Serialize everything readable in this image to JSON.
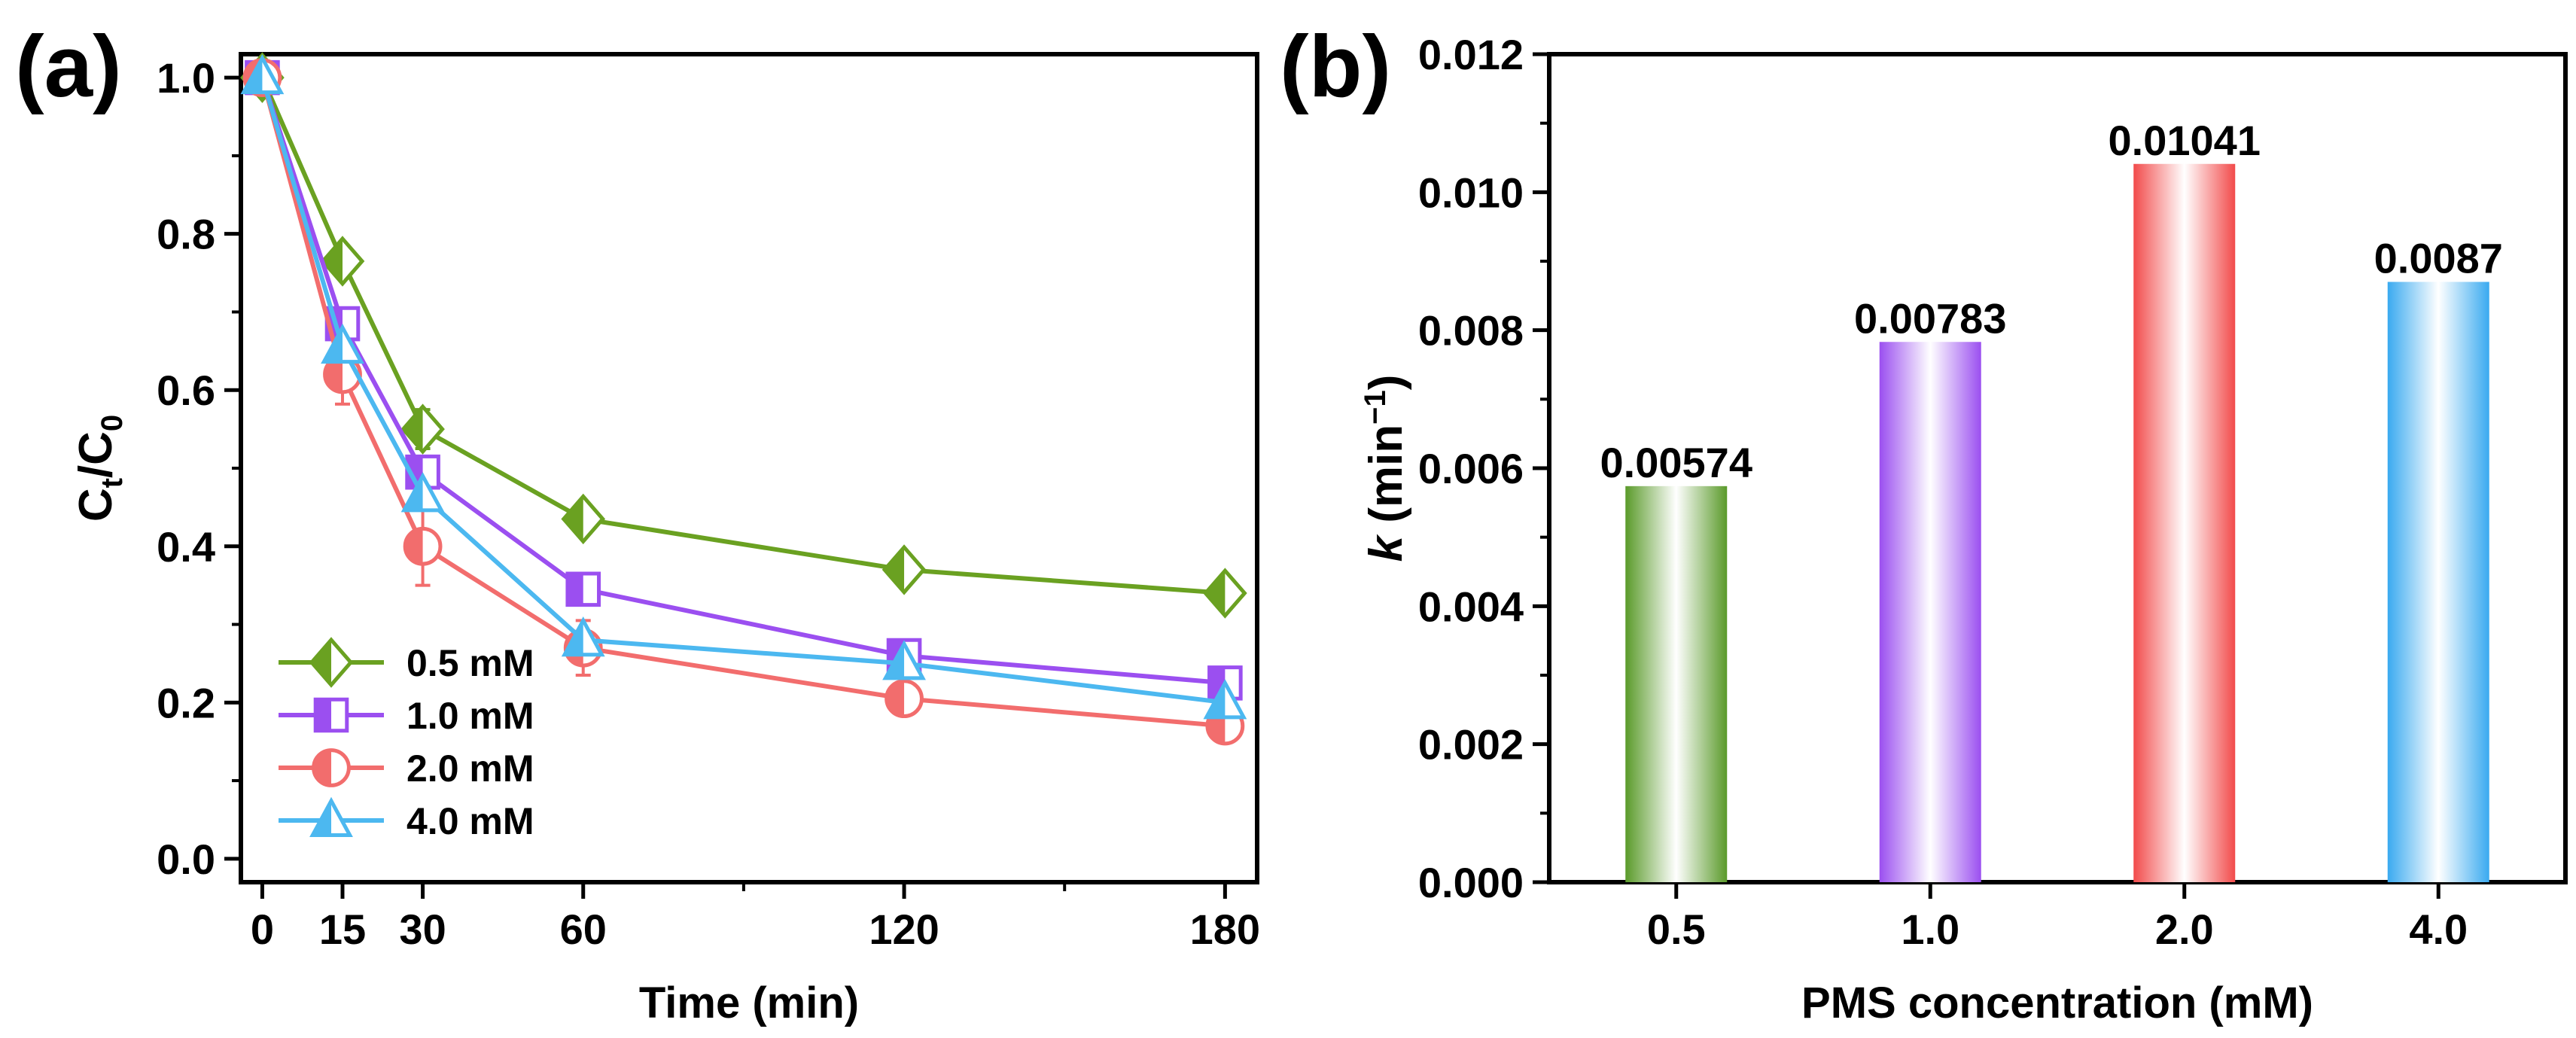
{
  "panel_a": {
    "label": "(a)"
  },
  "panel_b": {
    "label": "(b)"
  },
  "chart_data": [
    {
      "type": "line",
      "panel": "(a)",
      "xlabel": "Time (min)",
      "ylabel_main": "C",
      "ylabel_sub1": "t",
      "ylabel_sep": "/C",
      "ylabel_sub2": "0",
      "xlim": [
        -4,
        186
      ],
      "ylim": [
        -0.03,
        1.03
      ],
      "xticks": [
        0,
        15,
        30,
        60,
        120,
        180
      ],
      "xtick_labels": [
        "0",
        "15",
        "30",
        "60",
        "120",
        "180"
      ],
      "yticks": [
        0.0,
        0.2,
        0.4,
        0.6,
        0.8,
        1.0
      ],
      "ytick_labels": [
        "0.0",
        "0.2",
        "0.4",
        "0.6",
        "0.8",
        "1.0"
      ],
      "x": [
        0,
        15,
        30,
        60,
        120,
        180
      ],
      "legend_position": "bottom-left",
      "series": [
        {
          "name": "0.5 mM",
          "color": "#6aa121",
          "marker": "diamond",
          "values": [
            1.0,
            0.765,
            0.55,
            0.435,
            0.37,
            0.34
          ],
          "errors": [
            0,
            0.012,
            0.025,
            0.015,
            0.01,
            0.01
          ]
        },
        {
          "name": "1.0 mM",
          "color": "#9b4ff0",
          "marker": "square",
          "values": [
            1.0,
            0.685,
            0.495,
            0.345,
            0.26,
            0.225
          ],
          "errors": [
            0,
            0.01,
            0.015,
            0.012,
            0.01,
            0.01
          ]
        },
        {
          "name": "2.0 mM",
          "color": "#f26d6d",
          "marker": "circle",
          "values": [
            1.0,
            0.62,
            0.4,
            0.27,
            0.205,
            0.17
          ],
          "errors": [
            0,
            0.038,
            0.05,
            0.035,
            0.01,
            0.015
          ]
        },
        {
          "name": "4.0 mM",
          "color": "#4cb8f0",
          "marker": "triangle",
          "values": [
            1.0,
            0.655,
            0.465,
            0.28,
            0.25,
            0.2
          ],
          "errors": [
            0,
            0.01,
            0.012,
            0.01,
            0.01,
            0.01
          ]
        }
      ]
    },
    {
      "type": "bar",
      "panel": "(b)",
      "xlabel": "PMS concentration (mM)",
      "ylabel_k": "k",
      "ylabel_unit": " (min",
      "ylabel_exp": "−1",
      "ylabel_close": ")",
      "categories": [
        "0.5",
        "1.0",
        "2.0",
        "4.0"
      ],
      "values": [
        0.00574,
        0.00783,
        0.01041,
        0.0087
      ],
      "value_labels": [
        "0.00574",
        "0.00783",
        "0.01041",
        "0.0087"
      ],
      "colors": [
        "#5a9a2a",
        "#9b4ff0",
        "#f24b4b",
        "#3aaaf0"
      ],
      "ylim": [
        0,
        0.012
      ],
      "yticks": [
        0,
        0.002,
        0.004,
        0.006,
        0.008,
        0.01,
        0.012
      ],
      "ytick_labels": [
        "0.000",
        "0.002",
        "0.004",
        "0.006",
        "0.008",
        "0.010",
        "0.012"
      ]
    }
  ]
}
